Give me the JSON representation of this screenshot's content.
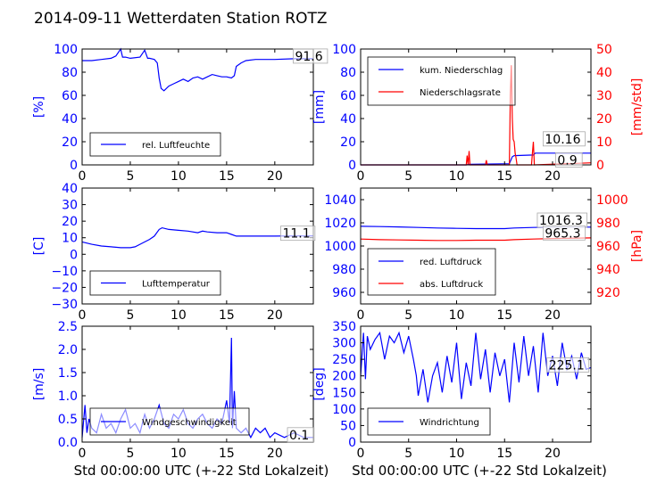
{
  "title": "2014-09-11 Wetterdaten Station ROTZ",
  "colors": {
    "primary": "#0000ff",
    "secondary": "#ff0000",
    "light": "#8080ff"
  },
  "chart_data": [
    {
      "type": "line",
      "id": "humidity",
      "ylabel": "[%]",
      "xlim": [
        0,
        24
      ],
      "ylim": [
        0,
        100
      ],
      "xticks": [
        "0",
        "5",
        "10",
        "15",
        "20"
      ],
      "yticks": [
        "0",
        "20",
        "40",
        "60",
        "80",
        "100"
      ],
      "legend": [
        "rel. Luftfeuchte"
      ],
      "legend_position": "lower-left",
      "annotations": [
        "91.6"
      ],
      "series": [
        {
          "name": "rel. Luftfeuchte",
          "color": "#0000ff",
          "x": [
            0,
            1,
            2,
            3,
            3.5,
            4,
            4.2,
            4.5,
            5,
            6,
            6.5,
            6.8,
            7,
            7.5,
            7.8,
            8,
            8.2,
            8.5,
            9,
            9.5,
            10,
            10.5,
            11,
            11.5,
            12,
            12.5,
            13,
            13.5,
            14,
            14.5,
            15,
            15.5,
            15.8,
            16,
            16.5,
            17,
            18,
            20,
            22,
            24
          ],
          "y": [
            90,
            90,
            91,
            92,
            94,
            100,
            93,
            93,
            92,
            93,
            99,
            92,
            92,
            91,
            88,
            75,
            66,
            64,
            68,
            70,
            72,
            74,
            72,
            75,
            76,
            74,
            76,
            78,
            77,
            76,
            76,
            75,
            77,
            85,
            88,
            90,
            91,
            91,
            91.6,
            91.6
          ]
        }
      ]
    },
    {
      "type": "line",
      "id": "precipitation",
      "ylabel": "[mm]",
      "y2label": "[mm/std]",
      "xlim": [
        0,
        24
      ],
      "ylim": [
        0,
        100
      ],
      "y2lim": [
        0,
        50
      ],
      "xticks": [
        "0",
        "5",
        "10",
        "15",
        "20"
      ],
      "yticks": [
        "0",
        "20",
        "40",
        "60",
        "80",
        "100"
      ],
      "y2ticks": [
        "0",
        "10",
        "20",
        "30",
        "40",
        "50"
      ],
      "legend": [
        "kum. Niederschlag",
        "Niederschlagsrate"
      ],
      "legend_position": "upper-left",
      "annotations": [
        "10.16",
        "0.9"
      ],
      "series": [
        {
          "name": "kum. Niederschlag",
          "color": "#0000ff",
          "axis": "left",
          "x": [
            0,
            11,
            11.3,
            15.5,
            15.8,
            16,
            18,
            18.2,
            24
          ],
          "y": [
            0,
            0,
            0.5,
            1,
            7,
            8,
            8.5,
            10.16,
            10.16
          ]
        },
        {
          "name": "Niederschlagsrate",
          "color": "#ff0000",
          "axis": "right",
          "x": [
            0,
            11,
            11.1,
            11.2,
            11.3,
            11.4,
            13,
            13.1,
            13.2,
            15.5,
            15.6,
            15.7,
            15.8,
            15.9,
            16,
            16.1,
            16.2,
            16.3,
            17.8,
            17.9,
            18,
            18.1,
            24
          ],
          "y": [
            0,
            0,
            4,
            0,
            6,
            0,
            0,
            2,
            0,
            0,
            30,
            43,
            20,
            11,
            10,
            5,
            3,
            0,
            0,
            5,
            10,
            0,
            0.9
          ]
        }
      ]
    },
    {
      "type": "line",
      "id": "temperature",
      "ylabel": "[C]",
      "xlim": [
        0,
        24
      ],
      "ylim": [
        -30,
        40
      ],
      "xticks": [
        "0",
        "5",
        "10",
        "15",
        "20"
      ],
      "yticks": [
        "−30",
        "−20",
        "−10",
        "0",
        "10",
        "20",
        "30",
        "40"
      ],
      "legend": [
        "Lufttemperatur"
      ],
      "legend_position": "lower-left",
      "annotations": [
        "11.1"
      ],
      "series": [
        {
          "name": "Lufttemperatur",
          "color": "#0000ff",
          "x": [
            0,
            1,
            2,
            3,
            4,
            5,
            5.5,
            6,
            7,
            7.5,
            8,
            8.3,
            9,
            10,
            11,
            12,
            12.5,
            13,
            14,
            15,
            15.5,
            16,
            17,
            18,
            20,
            22,
            24
          ],
          "y": [
            7.5,
            6,
            5,
            4.5,
            4,
            4,
            4.5,
            6,
            9,
            11,
            15,
            16,
            15,
            14.5,
            14,
            13,
            14,
            13.5,
            13,
            13,
            12,
            11,
            11,
            11,
            11,
            11.1,
            11.1
          ]
        }
      ]
    },
    {
      "type": "line",
      "id": "pressure",
      "y2label": "[hPa]",
      "xlim": [
        0,
        24
      ],
      "ylim": [
        950,
        1050
      ],
      "y2lim": [
        910,
        1010
      ],
      "xticks": [
        "0",
        "5",
        "10",
        "15",
        "20"
      ],
      "yticks": [
        "960",
        "980",
        "1000",
        "1020",
        "1040"
      ],
      "y2ticks": [
        "920",
        "940",
        "960",
        "980",
        "1000"
      ],
      "legend": [
        "red. Luftdruck",
        "abs. Luftdruck"
      ],
      "legend_position": "lower-left",
      "annotations": [
        "1016.3",
        "965.3"
      ],
      "series": [
        {
          "name": "red. Luftdruck",
          "color": "#0000ff",
          "x": [
            0,
            2,
            4,
            6,
            8,
            10,
            12,
            14,
            15,
            16,
            18,
            20,
            24
          ],
          "y": [
            1017,
            1016.8,
            1016.5,
            1016,
            1015.5,
            1015.2,
            1015,
            1015,
            1015,
            1015.5,
            1016,
            1016.3,
            1016.3
          ]
        },
        {
          "name": "abs. Luftdruck",
          "color": "#ff0000",
          "x": [
            0,
            2,
            4,
            6,
            8,
            10,
            12,
            14,
            15,
            16,
            18,
            20,
            24
          ],
          "y": [
            1006,
            1005.5,
            1005.2,
            1005,
            1004.8,
            1004.8,
            1005,
            1005,
            1005,
            1005.5,
            1006,
            1006.5,
            1007
          ]
        }
      ]
    },
    {
      "type": "line",
      "id": "wind-speed",
      "ylabel": "[m/s]",
      "xlabel": "Std 00:00:00 UTC (+-22 Std Lokalzeit)",
      "xlim": [
        0,
        24
      ],
      "ylim": [
        0,
        2.5
      ],
      "xticks": [
        "0",
        "5",
        "10",
        "15",
        "20"
      ],
      "yticks": [
        "0.0",
        "0.5",
        "1.0",
        "1.5",
        "2.0",
        "2.5"
      ],
      "legend": [
        "Windgeschwindigkeit"
      ],
      "legend_position": "lower-left",
      "annotations": [
        "0.1"
      ],
      "series": [
        {
          "name": "Windgeschwindigkeit",
          "color": "#0000ff",
          "x": [
            0,
            0.3,
            0.5,
            0.7,
            1,
            1.5,
            2,
            2.5,
            3,
            3.5,
            4,
            4.5,
            5,
            5.5,
            6,
            6.5,
            7,
            7.5,
            8,
            8.5,
            9,
            9.5,
            10,
            10.5,
            11,
            11.5,
            12,
            12.5,
            13,
            13.5,
            14,
            14.5,
            15,
            15.3,
            15.5,
            15.6,
            15.8,
            16,
            16.5,
            17,
            17.5,
            18,
            18.5,
            19,
            19.5,
            20,
            21,
            22,
            23,
            24
          ],
          "y": [
            0.1,
            0.8,
            0.2,
            0.5,
            0.3,
            0.2,
            0.6,
            0.3,
            0.4,
            0.2,
            0.5,
            0.7,
            0.3,
            0.4,
            0.2,
            0.6,
            0.3,
            0.5,
            0.8,
            0.4,
            0.3,
            0.6,
            0.5,
            0.7,
            0.4,
            0.3,
            0.5,
            0.6,
            0.4,
            0.3,
            0.5,
            0.4,
            0.9,
            0.4,
            2.25,
            0.3,
            1.1,
            0.3,
            0.2,
            0.3,
            0.1,
            0.3,
            0.2,
            0.3,
            0.1,
            0.2,
            0.1,
            0.2,
            0.1,
            0.1
          ]
        }
      ]
    },
    {
      "type": "line",
      "id": "wind-direction",
      "ylabel": "[deg]",
      "xlabel": "Std 00:00:00 UTC (+-22 Std Lokalzeit)",
      "xlim": [
        0,
        24
      ],
      "ylim": [
        0,
        350
      ],
      "xticks": [
        "0",
        "5",
        "10",
        "15",
        "20"
      ],
      "yticks": [
        "0",
        "50",
        "100",
        "150",
        "200",
        "250",
        "300",
        "350"
      ],
      "legend": [
        "Windrichtung"
      ],
      "legend_position": "lower-left",
      "annotations": [
        "225.1"
      ],
      "series": [
        {
          "name": "Windrichtung",
          "color": "#0000ff",
          "x": [
            0,
            0.3,
            0.5,
            0.7,
            1,
            1.5,
            2,
            2.5,
            3,
            3.5,
            4,
            4.5,
            5,
            5.5,
            5.8,
            6,
            6.5,
            7,
            7.5,
            8,
            8.5,
            9,
            9.5,
            10,
            10.5,
            11,
            11.5,
            12,
            12.5,
            13,
            13.5,
            14,
            14.5,
            15,
            15.5,
            16,
            16.5,
            17,
            17.5,
            18,
            18.5,
            19,
            19.5,
            20,
            20.5,
            21,
            21.5,
            22,
            22.5,
            23,
            23.5,
            24
          ],
          "y": [
            200,
            330,
            190,
            320,
            280,
            310,
            330,
            250,
            320,
            300,
            330,
            270,
            320,
            250,
            200,
            140,
            220,
            120,
            200,
            240,
            150,
            260,
            180,
            300,
            130,
            240,
            170,
            330,
            190,
            280,
            150,
            270,
            200,
            250,
            120,
            300,
            180,
            320,
            200,
            290,
            150,
            330,
            200,
            260,
            170,
            300,
            220,
            260,
            190,
            270,
            220,
            225
          ]
        }
      ]
    }
  ]
}
